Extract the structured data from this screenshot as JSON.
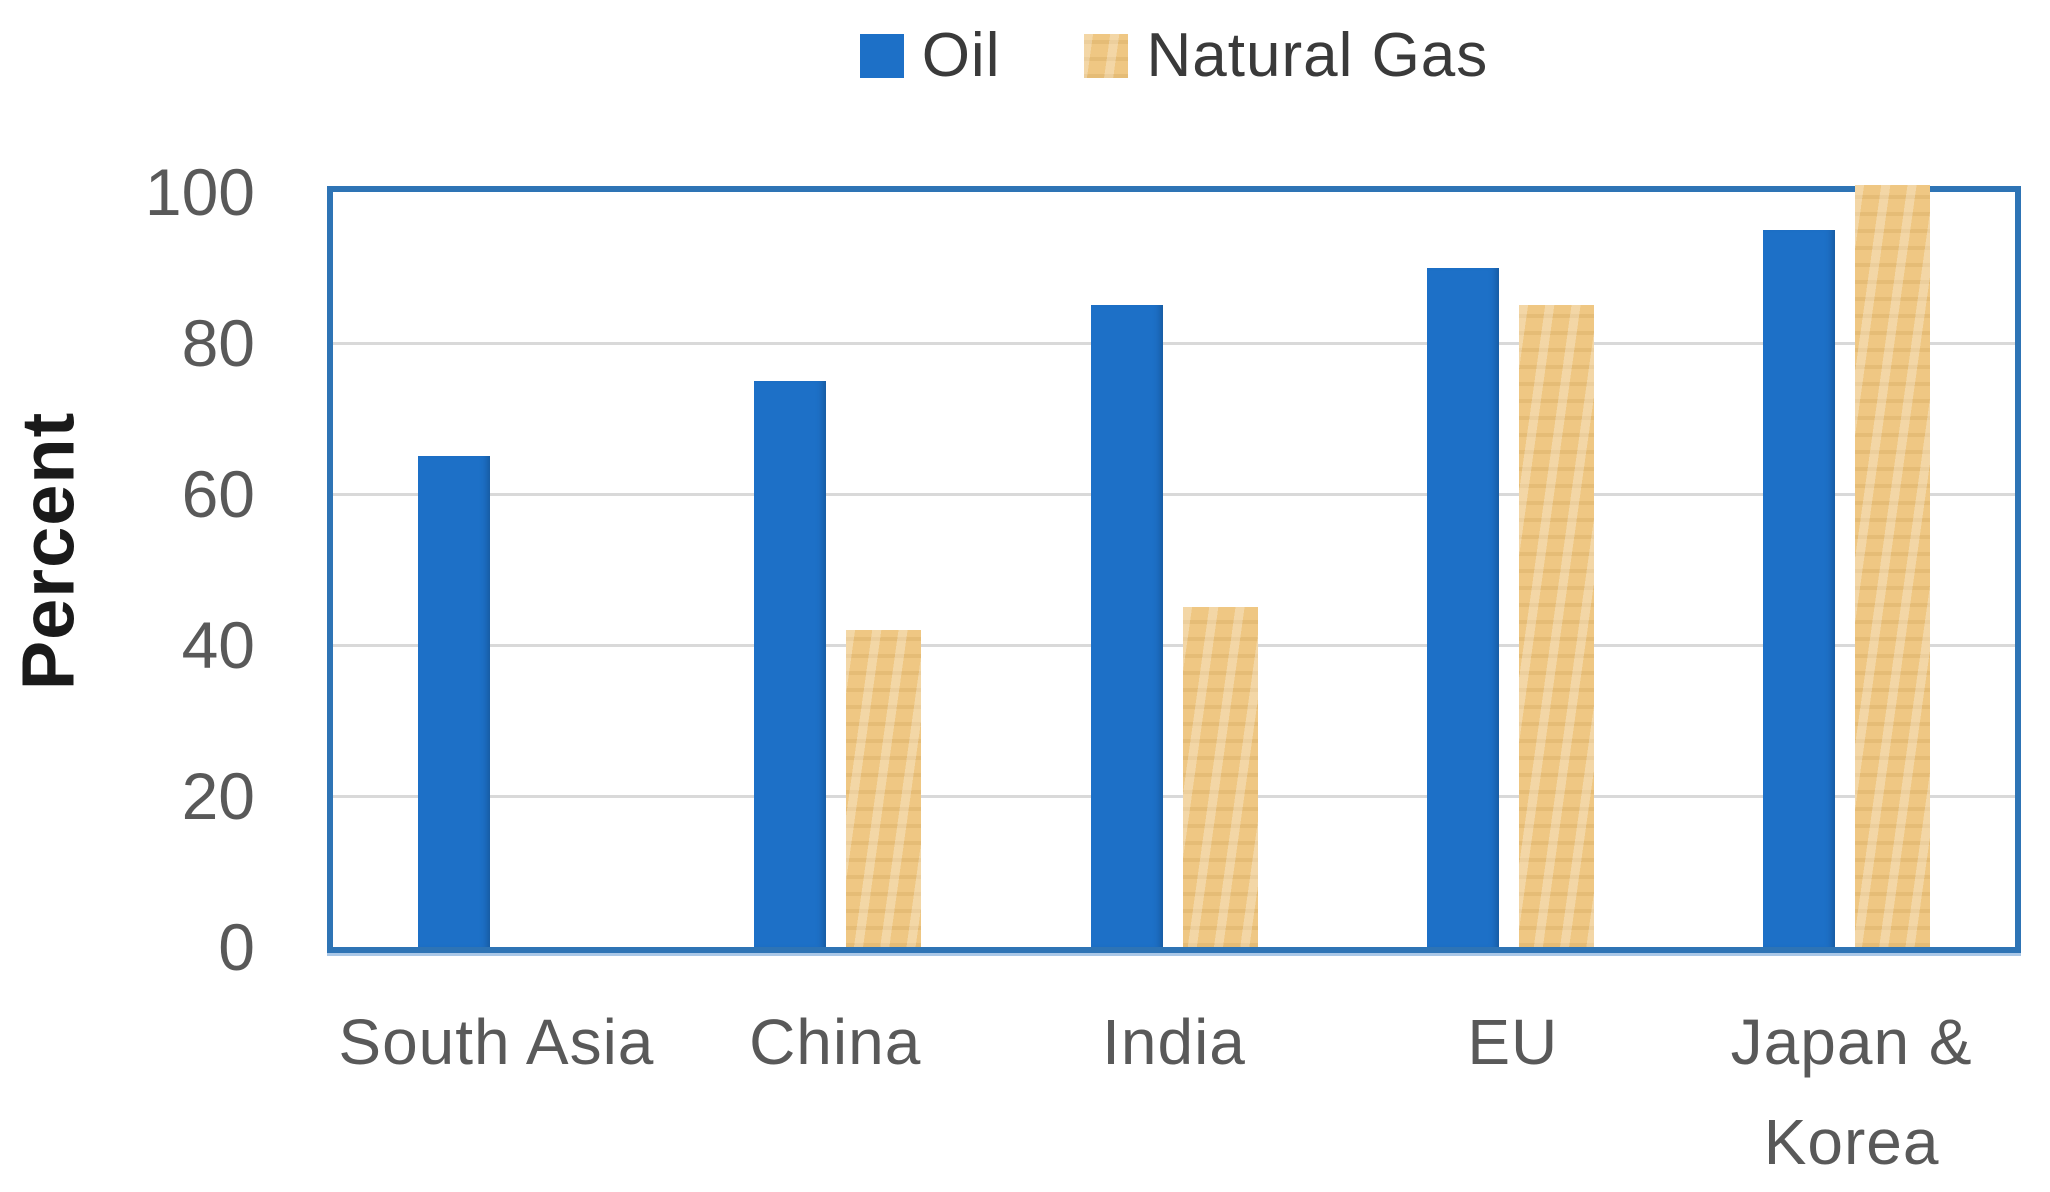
{
  "chart_data": {
    "type": "bar",
    "title": "",
    "categories": [
      "South Asia",
      "China",
      "India",
      "EU",
      "Japan & Korea"
    ],
    "category_display_lines": [
      [
        "South Asia"
      ],
      [
        "China"
      ],
      [
        "India"
      ],
      [
        "EU"
      ],
      [
        "Japan &",
        "Korea"
      ]
    ],
    "series": [
      {
        "name": "Oil",
        "color": "#1d70c7",
        "values": [
          65,
          75,
          85,
          90,
          95
        ]
      },
      {
        "name": "Natural Gas",
        "color": "#efc783",
        "values": [
          null,
          42,
          45,
          85,
          100
        ]
      }
    ],
    "xlabel": "",
    "ylabel": "Percent",
    "ylim": [
      0,
      100
    ],
    "yticks": [
      0,
      20,
      40,
      60,
      80,
      100
    ],
    "grid": true,
    "legend_position": "top",
    "plot_border_color": "#2e74b5",
    "gridline_color": "#d9d9d9",
    "tick_label_color": "#595959",
    "x_label_color": "#595959",
    "legend_text_color": "#3a3a3a",
    "axis_title_color": "#1a1a1a"
  }
}
